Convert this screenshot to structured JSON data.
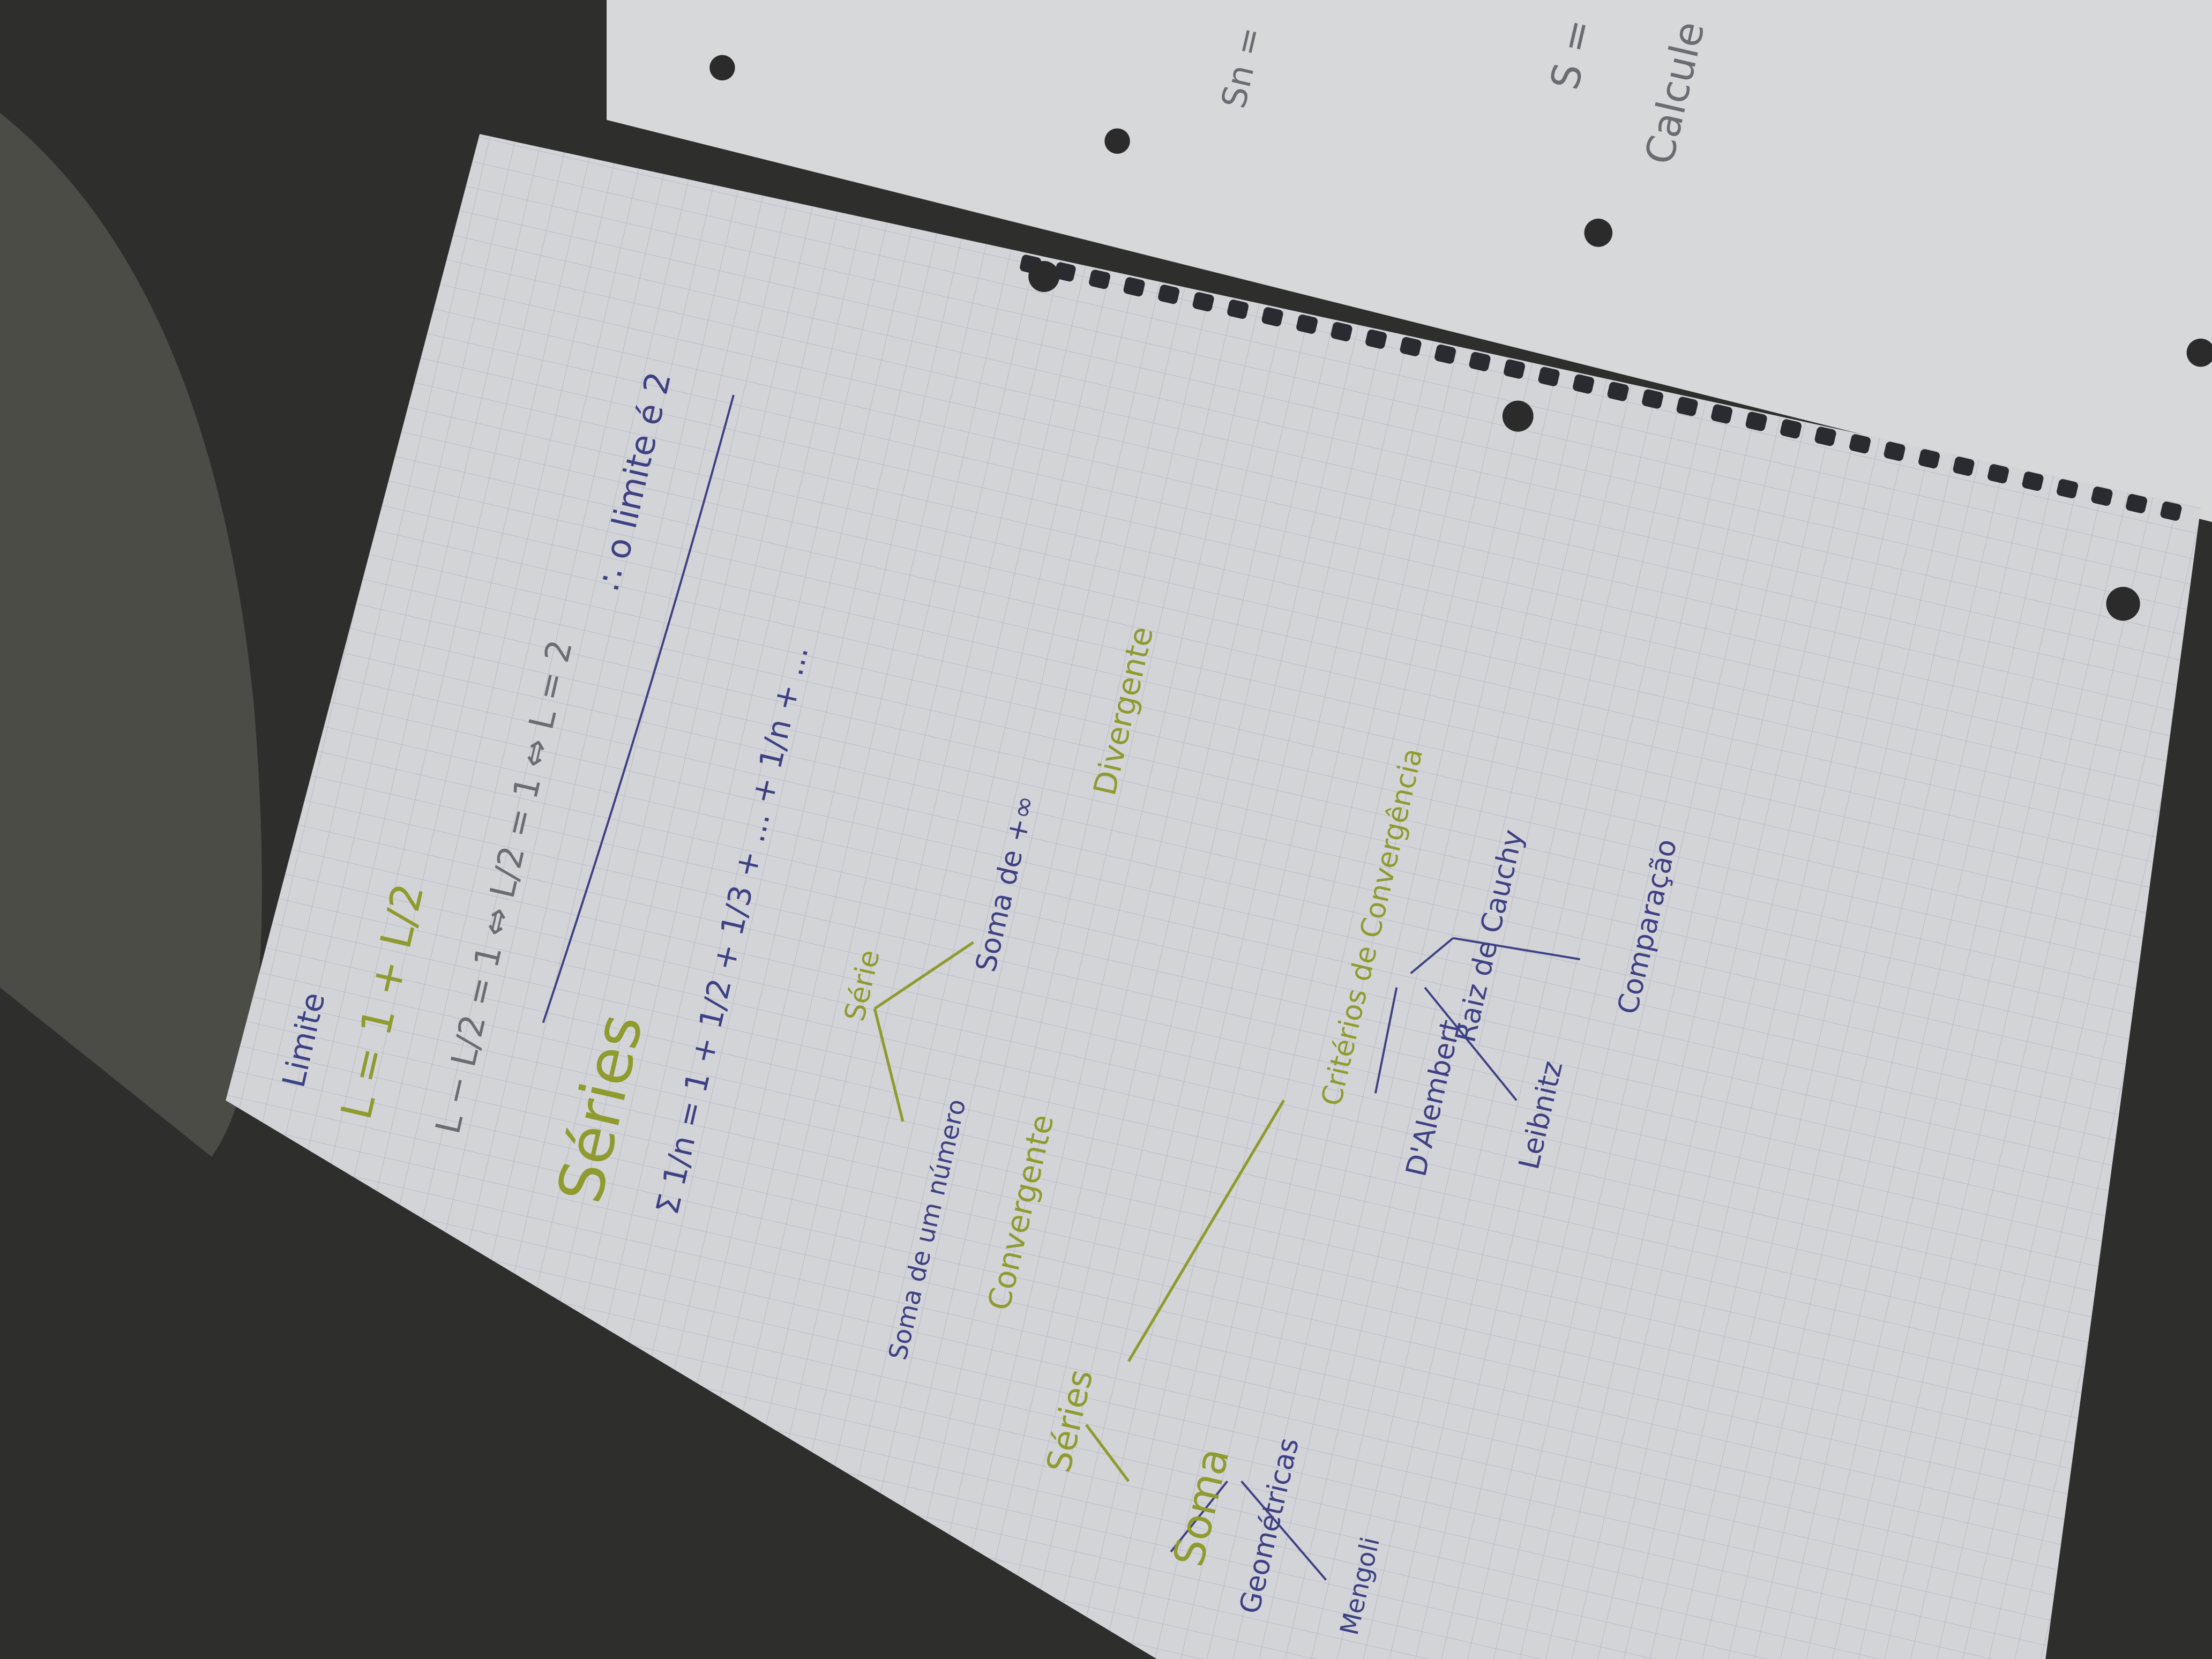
{
  "left_page": {
    "heading": "Limite",
    "equations": [
      "L = 1 + L/2",
      "L − L/2 = 1 ⇔ L/2 = 1 ⇔ L = 2",
      "∴ o limite é 2"
    ],
    "series_title": "Séries",
    "series_sum": "Σ 1/n = 1 + 1/2 + 1/3 + ... + 1/n + ...",
    "concept_map": {
      "serie": "Série",
      "soma_numeros": "Soma de um número",
      "convergente": "Convergente",
      "soma_infinito": "Soma de +∞",
      "divergente": "Divergente"
    },
    "types": {
      "title": "Séries",
      "soma": "Soma",
      "geometricas": "Geométricas",
      "mengoli": "Mengoli"
    },
    "criteria": {
      "title": "Critérios de Convergência",
      "items": [
        "D'Alembert",
        "Raiz de Cauchy",
        "Leibnitz",
        "Comparação"
      ]
    }
  },
  "right_page": {
    "lines": [
      "Calcule",
      "S =",
      "Sn ="
    ]
  }
}
